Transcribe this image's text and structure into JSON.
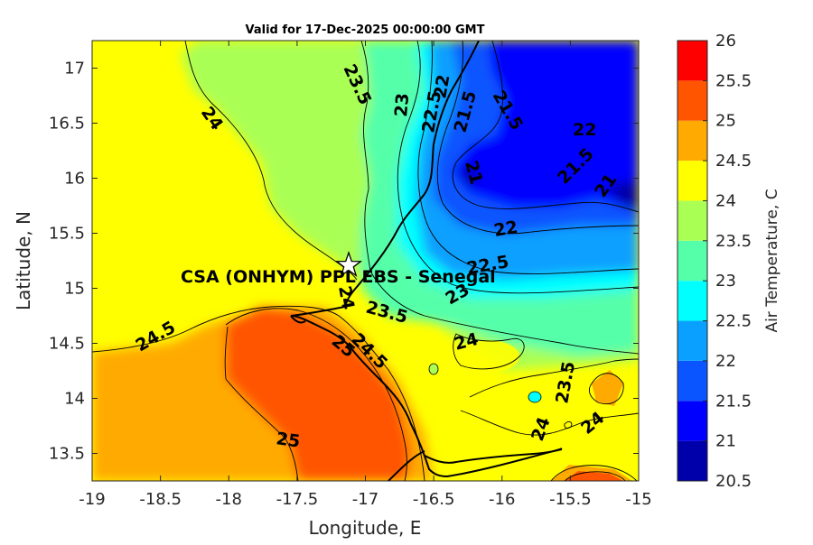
{
  "title": "Valid for 17-Dec-2025 00:00:00 GMT",
  "xlabel": "Longitude, E",
  "ylabel": "Latitude, N",
  "colorbar_label": "Air Temperature, C",
  "site_label": "CSA (ONHYM) PPL EBS  - Senegal",
  "site": {
    "lon": -17.12,
    "lat": 15.25,
    "marker": "star-icon"
  },
  "x_ticks": [
    "-19",
    "-18.5",
    "-18",
    "-17.5",
    "-17",
    "-16.5",
    "-16",
    "-15.5",
    "-15"
  ],
  "y_ticks": [
    "13.5",
    "14",
    "14.5",
    "15",
    "15.5",
    "16",
    "16.5",
    "17"
  ],
  "colorbar": {
    "ticks": [
      "20.5",
      "21",
      "21.5",
      "22",
      "22.5",
      "23",
      "23.5",
      "24",
      "24.5",
      "25",
      "25.5",
      "26"
    ],
    "colors": [
      "#0000aa",
      "#0000ff",
      "#0a55ff",
      "#0aa0ff",
      "#00ffff",
      "#55ffaa",
      "#aaff55",
      "#ffff00",
      "#ffaa00",
      "#ff5500",
      "#ff0000"
    ]
  },
  "chart_data": {
    "type": "heatmap",
    "title": "Valid for 17-Dec-2025 00:00:00 GMT",
    "xlabel": "Longitude, E",
    "ylabel": "Latitude, N",
    "xlim": [
      -19,
      -15
    ],
    "ylim": [
      13.25,
      17.25
    ],
    "value_range": [
      20.5,
      26
    ],
    "contour_step": 0.5,
    "contour_labels": [
      {
        "text": "24",
        "lon": -18.2,
        "lat": 16.65
      },
      {
        "text": "23.5",
        "lon": -16.9,
        "lat": 16.9
      },
      {
        "text": "23",
        "lon": -16.7,
        "lat": 16.65
      },
      {
        "text": "22.5",
        "lon": -16.55,
        "lat": 16.6
      },
      {
        "text": "22",
        "lon": -16.35,
        "lat": 16.8
      },
      {
        "text": "21.5",
        "lon": -16.3,
        "lat": 16.6
      },
      {
        "text": "21.5",
        "lon": -15.95,
        "lat": 16.65
      },
      {
        "text": "22",
        "lon": -15.55,
        "lat": 16.45
      },
      {
        "text": "21",
        "lon": -16.15,
        "lat": 16.1
      },
      {
        "text": "21.5",
        "lon": -15.45,
        "lat": 16.1
      },
      {
        "text": "21",
        "lon": -15.2,
        "lat": 15.95
      },
      {
        "text": "22",
        "lon": -15.95,
        "lat": 15.55
      },
      {
        "text": "22.5",
        "lon": -16.0,
        "lat": 15.2
      },
      {
        "text": "23",
        "lon": -16.4,
        "lat": 14.95
      },
      {
        "text": "24",
        "lon": -17.1,
        "lat": 14.97
      },
      {
        "text": "23.5",
        "lon": -16.8,
        "lat": 14.8
      },
      {
        "text": "24.5",
        "lon": -18.65,
        "lat": 14.55
      },
      {
        "text": "25",
        "lon": -17.1,
        "lat": 14.45
      },
      {
        "text": "24.5",
        "lon": -16.9,
        "lat": 14.35
      },
      {
        "text": "24",
        "lon": -16.25,
        "lat": 14.5
      },
      {
        "text": "23.5",
        "lon": -15.35,
        "lat": 14.15
      },
      {
        "text": "24",
        "lon": -15.65,
        "lat": 13.8
      },
      {
        "text": "24",
        "lon": -15.25,
        "lat": 13.8
      },
      {
        "text": "25",
        "lon": -17.55,
        "lat": 13.65
      }
    ]
  }
}
